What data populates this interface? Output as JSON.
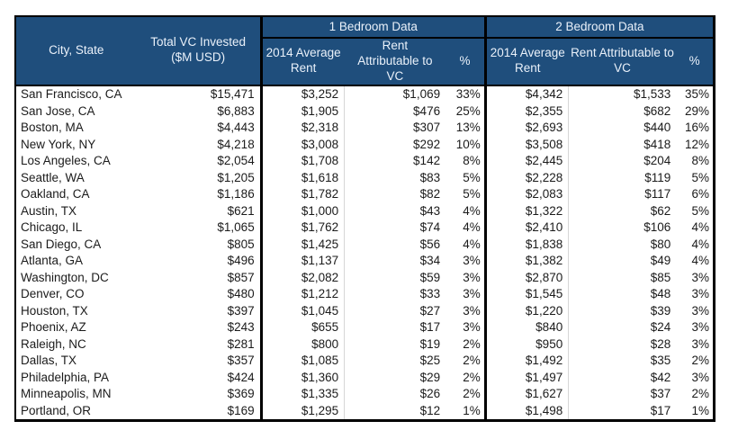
{
  "colors": {
    "header_background": "#1F4E7C",
    "header_text": "#EAF1FA",
    "body_text": "#1B1B1B",
    "border": "#000000",
    "faint_gridline": "#D6D6D6",
    "page_background": "#FFFFFF"
  },
  "chart_data": {
    "type": "table",
    "title": "",
    "column_groups": [
      "1 Bedroom Data",
      "2 Bedroom Data"
    ],
    "headers": {
      "city": "City, State",
      "total_vc": "Total VC Invested ($M USD)",
      "group_1br": "1 Bedroom Data",
      "group_2br": "2 Bedroom Data",
      "avg_rent_1br": "2014 Average Rent",
      "attr_1br": "Rent Attributable to VC",
      "pct_1br": "%",
      "avg_rent_2br": "2014 Average Rent",
      "attr_2br": "Rent Attributable to VC",
      "pct_2br": "%"
    },
    "rows": [
      {
        "city": "San Francisco, CA",
        "total_vc": "$15,471",
        "br1_rent": "$3,252",
        "br1_attr": "$1,069",
        "br1_pct": "33%",
        "br2_rent": "$4,342",
        "br2_attr": "$1,533",
        "br2_pct": "35%"
      },
      {
        "city": "San Jose, CA",
        "total_vc": "$6,883",
        "br1_rent": "$1,905",
        "br1_attr": "$476",
        "br1_pct": "25%",
        "br2_rent": "$2,355",
        "br2_attr": "$682",
        "br2_pct": "29%"
      },
      {
        "city": "Boston, MA",
        "total_vc": "$4,443",
        "br1_rent": "$2,318",
        "br1_attr": "$307",
        "br1_pct": "13%",
        "br2_rent": "$2,693",
        "br2_attr": "$440",
        "br2_pct": "16%"
      },
      {
        "city": "New York, NY",
        "total_vc": "$4,218",
        "br1_rent": "$3,008",
        "br1_attr": "$292",
        "br1_pct": "10%",
        "br2_rent": "$3,508",
        "br2_attr": "$418",
        "br2_pct": "12%"
      },
      {
        "city": "Los Angeles, CA",
        "total_vc": "$2,054",
        "br1_rent": "$1,708",
        "br1_attr": "$142",
        "br1_pct": "8%",
        "br2_rent": "$2,445",
        "br2_attr": "$204",
        "br2_pct": "8%"
      },
      {
        "city": "Seattle, WA",
        "total_vc": "$1,205",
        "br1_rent": "$1,618",
        "br1_attr": "$83",
        "br1_pct": "5%",
        "br2_rent": "$2,228",
        "br2_attr": "$119",
        "br2_pct": "5%"
      },
      {
        "city": "Oakland, CA",
        "total_vc": "$1,186",
        "br1_rent": "$1,782",
        "br1_attr": "$82",
        "br1_pct": "5%",
        "br2_rent": "$2,083",
        "br2_attr": "$117",
        "br2_pct": "6%"
      },
      {
        "city": "Austin, TX",
        "total_vc": "$621",
        "br1_rent": "$1,000",
        "br1_attr": "$43",
        "br1_pct": "4%",
        "br2_rent": "$1,322",
        "br2_attr": "$62",
        "br2_pct": "5%"
      },
      {
        "city": "Chicago, IL",
        "total_vc": "$1,065",
        "br1_rent": "$1,762",
        "br1_attr": "$74",
        "br1_pct": "4%",
        "br2_rent": "$2,410",
        "br2_attr": "$106",
        "br2_pct": "4%"
      },
      {
        "city": "San Diego, CA",
        "total_vc": "$805",
        "br1_rent": "$1,425",
        "br1_attr": "$56",
        "br1_pct": "4%",
        "br2_rent": "$1,838",
        "br2_attr": "$80",
        "br2_pct": "4%"
      },
      {
        "city": "Atlanta, GA",
        "total_vc": "$496",
        "br1_rent": "$1,137",
        "br1_attr": "$34",
        "br1_pct": "3%",
        "br2_rent": "$1,382",
        "br2_attr": "$49",
        "br2_pct": "4%"
      },
      {
        "city": "Washington, DC",
        "total_vc": "$857",
        "br1_rent": "$2,082",
        "br1_attr": "$59",
        "br1_pct": "3%",
        "br2_rent": "$2,870",
        "br2_attr": "$85",
        "br2_pct": "3%"
      },
      {
        "city": "Denver, CO",
        "total_vc": "$480",
        "br1_rent": "$1,212",
        "br1_attr": "$33",
        "br1_pct": "3%",
        "br2_rent": "$1,545",
        "br2_attr": "$48",
        "br2_pct": "3%"
      },
      {
        "city": "Houston, TX",
        "total_vc": "$397",
        "br1_rent": "$1,045",
        "br1_attr": "$27",
        "br1_pct": "3%",
        "br2_rent": "$1,220",
        "br2_attr": "$39",
        "br2_pct": "3%"
      },
      {
        "city": "Phoenix, AZ",
        "total_vc": "$243",
        "br1_rent": "$655",
        "br1_attr": "$17",
        "br1_pct": "3%",
        "br2_rent": "$840",
        "br2_attr": "$24",
        "br2_pct": "3%"
      },
      {
        "city": "Raleigh, NC",
        "total_vc": "$281",
        "br1_rent": "$800",
        "br1_attr": "$19",
        "br1_pct": "2%",
        "br2_rent": "$950",
        "br2_attr": "$28",
        "br2_pct": "3%"
      },
      {
        "city": "Dallas, TX",
        "total_vc": "$357",
        "br1_rent": "$1,085",
        "br1_attr": "$25",
        "br1_pct": "2%",
        "br2_rent": "$1,492",
        "br2_attr": "$35",
        "br2_pct": "2%"
      },
      {
        "city": "Philadelphia, PA",
        "total_vc": "$424",
        "br1_rent": "$1,360",
        "br1_attr": "$29",
        "br1_pct": "2%",
        "br2_rent": "$1,497",
        "br2_attr": "$42",
        "br2_pct": "3%"
      },
      {
        "city": "Minneapolis, MN",
        "total_vc": "$369",
        "br1_rent": "$1,335",
        "br1_attr": "$26",
        "br1_pct": "2%",
        "br2_rent": "$1,627",
        "br2_attr": "$37",
        "br2_pct": "2%"
      },
      {
        "city": "Portland, OR",
        "total_vc": "$169",
        "br1_rent": "$1,295",
        "br1_attr": "$12",
        "br1_pct": "1%",
        "br2_rent": "$1,498",
        "br2_attr": "$17",
        "br2_pct": "1%"
      }
    ]
  }
}
